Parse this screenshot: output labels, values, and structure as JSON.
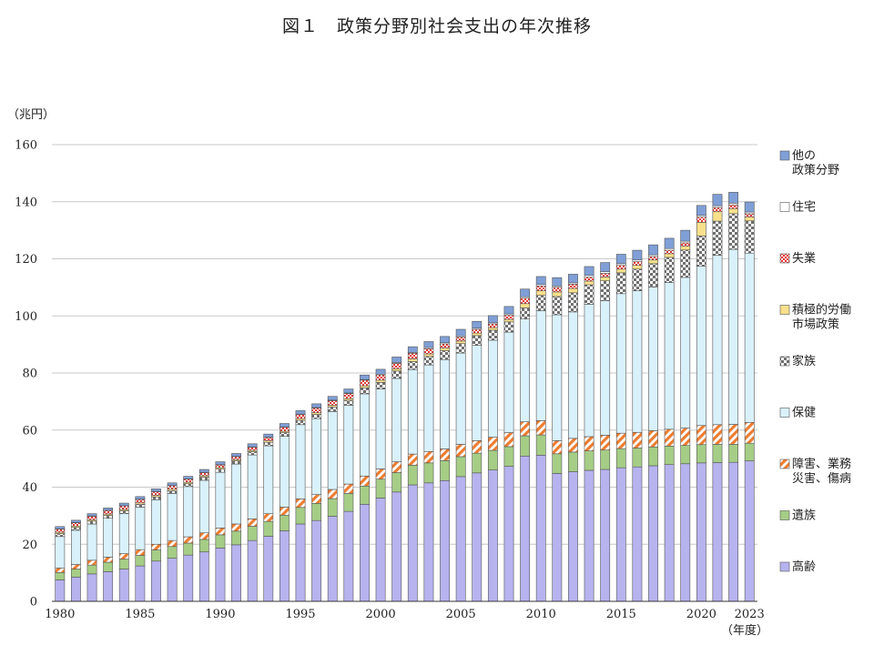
{
  "chart_data": {
    "type": "bar",
    "stacked": true,
    "title": "図１　政策分野別社会支出の年次推移",
    "yunit": "（兆円）",
    "xunit": "（年度）",
    "ylim": [
      0,
      160
    ],
    "yticks": [
      0,
      20,
      40,
      60,
      80,
      100,
      120,
      140,
      160
    ],
    "xtick_labels": [
      "1980",
      "1985",
      "1990",
      "1995",
      "2000",
      "2005",
      "2010",
      "2015",
      "2020",
      "2023"
    ],
    "grid": true,
    "legend_position": "right",
    "categories": [
      "1980",
      "1981",
      "1982",
      "1983",
      "1984",
      "1985",
      "1986",
      "1987",
      "1988",
      "1989",
      "1990",
      "1991",
      "1992",
      "1993",
      "1994",
      "1995",
      "1996",
      "1997",
      "1998",
      "1999",
      "2000",
      "2001",
      "2002",
      "2003",
      "2004",
      "2005",
      "2006",
      "2007",
      "2008",
      "2009",
      "2010",
      "2011",
      "2012",
      "2013",
      "2014",
      "2015",
      "2016",
      "2017",
      "2018",
      "2019",
      "2020",
      "2021",
      "2022",
      "2023"
    ],
    "series": [
      {
        "name": "高齢",
        "color": "#b7b3ef",
        "pattern": "solid",
        "values": [
          7.5,
          8.5,
          9.6,
          10.4,
          11.3,
          12.4,
          14.1,
          15.1,
          16.2,
          17.3,
          18.7,
          19.8,
          21.3,
          22.8,
          24.7,
          27.1,
          28.3,
          29.8,
          31.5,
          34.0,
          36.2,
          38.3,
          40.8,
          41.5,
          42.3,
          43.7,
          45.0,
          46.0,
          47.3,
          50.9,
          51.2,
          44.8,
          45.4,
          45.9,
          46.2,
          46.8,
          47.1,
          47.5,
          47.9,
          48.2,
          48.5,
          48.6,
          48.7,
          49.2
        ]
      },
      {
        "name": "遺族",
        "color": "#a5cd86",
        "pattern": "solid",
        "values": [
          2.6,
          2.8,
          3.1,
          3.3,
          3.5,
          3.7,
          3.9,
          4.1,
          4.2,
          4.4,
          4.6,
          4.8,
          5.0,
          5.2,
          5.5,
          5.8,
          6.0,
          6.2,
          6.3,
          6.4,
          6.6,
          6.8,
          6.9,
          7.0,
          7.0,
          7.0,
          6.9,
          6.9,
          6.9,
          7.1,
          7.1,
          6.9,
          6.9,
          6.8,
          6.8,
          6.7,
          6.6,
          6.6,
          6.5,
          6.4,
          6.4,
          6.4,
          6.3,
          6.2
        ]
      },
      {
        "name": "障害、業務災害、傷病",
        "color": "#ed7d31",
        "pattern": "hatch",
        "values": [
          1.6,
          1.6,
          1.7,
          1.8,
          1.9,
          2.0,
          2.0,
          2.1,
          2.2,
          2.3,
          2.4,
          2.5,
          2.6,
          2.7,
          2.8,
          3.0,
          3.1,
          3.2,
          3.3,
          3.5,
          3.6,
          3.8,
          3.9,
          4.0,
          4.1,
          4.3,
          4.4,
          4.6,
          4.9,
          4.9,
          5.0,
          4.6,
          4.8,
          5.0,
          5.2,
          5.4,
          5.5,
          5.7,
          5.9,
          6.1,
          6.7,
          6.9,
          7.0,
          7.3
        ]
      },
      {
        "name": "保健",
        "color": "#d9f1fb",
        "pattern": "solid",
        "values": [
          11.0,
          12.0,
          12.7,
          13.6,
          14.0,
          14.9,
          15.6,
          16.5,
          17.6,
          18.4,
          19.5,
          21.0,
          22.4,
          23.8,
          24.8,
          26.0,
          26.6,
          27.3,
          27.6,
          28.8,
          28.0,
          29.2,
          29.6,
          30.3,
          31.3,
          32.0,
          33.4,
          34.0,
          35.2,
          36.0,
          38.5,
          44.1,
          44.3,
          46.4,
          47.1,
          48.9,
          49.6,
          50.3,
          51.4,
          52.8,
          55.8,
          59.3,
          61.3,
          59.3
        ]
      },
      {
        "name": "家族",
        "color": "#8c8c8c",
        "pattern": "checker",
        "values": [
          1.0,
          1.0,
          1.0,
          1.0,
          1.0,
          1.0,
          1.0,
          1.0,
          1.0,
          1.1,
          1.1,
          1.1,
          1.1,
          1.2,
          1.3,
          1.5,
          1.5,
          1.6,
          1.7,
          2.1,
          2.3,
          2.6,
          2.8,
          3.0,
          3.1,
          3.3,
          3.4,
          3.5,
          3.6,
          3.9,
          5.4,
          6.4,
          6.7,
          6.8,
          7.0,
          7.3,
          7.6,
          8.2,
          8.8,
          9.6,
          10.6,
          12.0,
          12.5,
          11.3
        ]
      },
      {
        "name": "積極的労働市場政策",
        "color": "#f8e08c",
        "pattern": "solid",
        "values": [
          0.5,
          0.5,
          0.5,
          0.5,
          0.5,
          0.5,
          0.5,
          0.5,
          0.5,
          0.5,
          0.5,
          0.5,
          0.5,
          0.5,
          0.5,
          0.6,
          0.6,
          0.6,
          0.6,
          0.7,
          0.8,
          0.8,
          0.9,
          0.9,
          0.9,
          0.9,
          0.9,
          0.9,
          0.9,
          1.5,
          1.6,
          1.6,
          1.5,
          1.3,
          1.3,
          1.3,
          1.3,
          1.3,
          1.3,
          1.3,
          4.8,
          3.3,
          1.8,
          1.3
        ]
      },
      {
        "name": "失業",
        "color": "#e53935",
        "pattern": "cross",
        "values": [
          1.1,
          1.1,
          1.2,
          1.2,
          1.2,
          1.2,
          1.3,
          1.2,
          1.1,
          1.1,
          1.0,
          1.0,
          1.1,
          1.2,
          1.4,
          1.5,
          1.6,
          1.6,
          1.8,
          2.0,
          1.8,
          1.9,
          2.0,
          1.8,
          1.5,
          1.4,
          1.3,
          1.3,
          1.4,
          1.9,
          1.7,
          1.6,
          1.5,
          1.4,
          1.3,
          1.3,
          1.3,
          1.2,
          1.2,
          1.2,
          1.8,
          1.5,
          1.3,
          1.2
        ]
      },
      {
        "name": "住宅",
        "color": "#ffffff",
        "pattern": "solid",
        "values": [
          0.1,
          0.1,
          0.1,
          0.1,
          0.1,
          0.1,
          0.1,
          0.1,
          0.1,
          0.1,
          0.1,
          0.1,
          0.1,
          0.1,
          0.1,
          0.1,
          0.2,
          0.2,
          0.2,
          0.2,
          0.3,
          0.3,
          0.3,
          0.4,
          0.4,
          0.4,
          0.4,
          0.4,
          0.5,
          0.5,
          0.5,
          0.5,
          0.5,
          0.6,
          0.6,
          0.6,
          0.6,
          0.6,
          0.6,
          0.6,
          0.6,
          0.6,
          0.6,
          0.6
        ]
      },
      {
        "name": "他の政策分野",
        "color": "#7f9fd6",
        "pattern": "solid",
        "values": [
          0.8,
          0.8,
          0.8,
          0.8,
          0.9,
          0.9,
          0.9,
          0.9,
          0.9,
          1.0,
          1.0,
          1.0,
          1.1,
          1.1,
          1.2,
          1.2,
          1.3,
          1.3,
          1.4,
          1.6,
          1.7,
          1.9,
          2.0,
          2.1,
          2.2,
          2.3,
          2.4,
          2.5,
          2.6,
          2.7,
          2.8,
          2.9,
          3.0,
          3.1,
          3.2,
          3.3,
          3.4,
          3.5,
          3.6,
          3.8,
          3.5,
          4.0,
          3.8,
          3.5
        ]
      }
    ],
    "legend": [
      {
        "lines": [
          "他の",
          "政策分野"
        ],
        "series": 8
      },
      {
        "lines": [
          "住宅"
        ],
        "series": 7
      },
      {
        "lines": [
          "失業"
        ],
        "series": 6
      },
      {
        "lines": [
          "積極的労働",
          "市場政策"
        ],
        "series": 5
      },
      {
        "lines": [
          "家族"
        ],
        "series": 4
      },
      {
        "lines": [
          "保健"
        ],
        "series": 3
      },
      {
        "lines": [
          "障害、業務",
          "災害、傷病"
        ],
        "series": 2
      },
      {
        "lines": [
          "遺族"
        ],
        "series": 1
      },
      {
        "lines": [
          "高齢"
        ],
        "series": 0
      }
    ]
  }
}
